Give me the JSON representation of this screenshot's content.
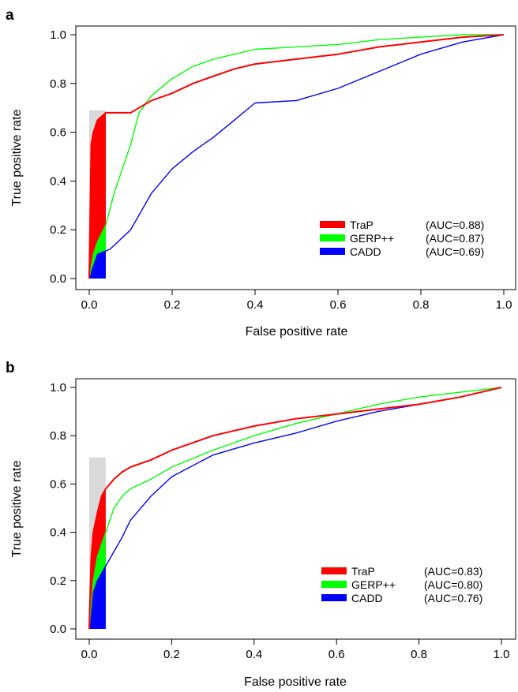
{
  "chart_data": [
    {
      "panel_label": "a",
      "type": "line",
      "subtype": "ROC curve",
      "xlabel": "False positive rate",
      "ylabel": "True positive rate",
      "xlim": [
        0,
        1
      ],
      "ylim": [
        0,
        1
      ],
      "xticks": [
        "0.0",
        "0.2",
        "0.4",
        "0.6",
        "0.8",
        "1.0"
      ],
      "yticks": [
        "0.0",
        "0.2",
        "0.4",
        "0.6",
        "0.8",
        "1.0"
      ],
      "grid": false,
      "legend_position": "bottom-right",
      "highlight_region": {
        "x": [
          0,
          0.04
        ],
        "y": [
          0,
          0.69
        ],
        "color": "#d9d9d9"
      },
      "series": [
        {
          "name": "TraP",
          "auc_label": "(AUC=0.88)",
          "color": "#ff0000",
          "x": [
            0,
            0.005,
            0.01,
            0.02,
            0.04,
            0.1,
            0.12,
            0.15,
            0.2,
            0.25,
            0.3,
            0.35,
            0.4,
            0.5,
            0.6,
            0.7,
            0.8,
            0.9,
            1.0
          ],
          "y": [
            0,
            0.55,
            0.6,
            0.65,
            0.68,
            0.68,
            0.7,
            0.73,
            0.76,
            0.8,
            0.83,
            0.86,
            0.88,
            0.9,
            0.92,
            0.95,
            0.97,
            0.99,
            1.0
          ]
        },
        {
          "name": "GERP++",
          "auc_label": "(AUC=0.87)",
          "color": "#00ff00",
          "x": [
            0,
            0.01,
            0.02,
            0.04,
            0.06,
            0.08,
            0.1,
            0.12,
            0.15,
            0.2,
            0.25,
            0.3,
            0.35,
            0.4,
            0.5,
            0.6,
            0.7,
            0.8,
            0.9,
            1.0
          ],
          "y": [
            0,
            0.1,
            0.15,
            0.22,
            0.35,
            0.45,
            0.55,
            0.68,
            0.75,
            0.82,
            0.87,
            0.9,
            0.92,
            0.94,
            0.95,
            0.96,
            0.98,
            0.99,
            1.0,
            1.0
          ]
        },
        {
          "name": "CADD",
          "auc_label": "(AUC=0.69)",
          "color": "#0000ff",
          "x": [
            0,
            0.02,
            0.05,
            0.1,
            0.15,
            0.2,
            0.25,
            0.3,
            0.35,
            0.4,
            0.5,
            0.6,
            0.7,
            0.8,
            0.9,
            1.0
          ],
          "y": [
            0,
            0.1,
            0.12,
            0.2,
            0.35,
            0.45,
            0.52,
            0.58,
            0.65,
            0.72,
            0.73,
            0.78,
            0.85,
            0.92,
            0.97,
            1.0
          ]
        }
      ]
    },
    {
      "panel_label": "b",
      "type": "line",
      "subtype": "ROC curve",
      "xlabel": "False positive rate",
      "ylabel": "True positive rate",
      "xlim": [
        0,
        1
      ],
      "ylim": [
        0,
        1
      ],
      "xticks": [
        "0.0",
        "0.2",
        "0.4",
        "0.6",
        "0.8",
        "1.0"
      ],
      "yticks": [
        "0.0",
        "0.2",
        "0.4",
        "0.6",
        "0.8",
        "1.0"
      ],
      "grid": false,
      "legend_position": "bottom-right",
      "highlight_region": {
        "x": [
          0,
          0.04
        ],
        "y": [
          0,
          0.71
        ],
        "color": "#d9d9d9"
      },
      "series": [
        {
          "name": "TraP",
          "auc_label": "(AUC=0.83)",
          "color": "#ff0000",
          "x": [
            0,
            0.005,
            0.01,
            0.02,
            0.03,
            0.04,
            0.06,
            0.08,
            0.1,
            0.15,
            0.2,
            0.3,
            0.4,
            0.5,
            0.6,
            0.7,
            0.8,
            0.9,
            1.0
          ],
          "y": [
            0,
            0.3,
            0.4,
            0.48,
            0.55,
            0.58,
            0.62,
            0.65,
            0.67,
            0.7,
            0.74,
            0.8,
            0.84,
            0.87,
            0.89,
            0.91,
            0.93,
            0.96,
            1.0
          ]
        },
        {
          "name": "GERP++",
          "auc_label": "(AUC=0.80)",
          "color": "#00ff00",
          "x": [
            0,
            0.01,
            0.02,
            0.04,
            0.06,
            0.08,
            0.1,
            0.15,
            0.2,
            0.3,
            0.4,
            0.5,
            0.6,
            0.7,
            0.8,
            0.9,
            1.0
          ],
          "y": [
            0,
            0.2,
            0.3,
            0.4,
            0.5,
            0.55,
            0.58,
            0.62,
            0.67,
            0.74,
            0.8,
            0.85,
            0.89,
            0.93,
            0.96,
            0.98,
            1.0
          ]
        },
        {
          "name": "CADD",
          "auc_label": "(AUC=0.76)",
          "color": "#0000ff",
          "x": [
            0,
            0.01,
            0.02,
            0.04,
            0.06,
            0.08,
            0.1,
            0.15,
            0.2,
            0.3,
            0.4,
            0.5,
            0.6,
            0.7,
            0.8,
            0.9,
            1.0
          ],
          "y": [
            0,
            0.15,
            0.2,
            0.26,
            0.32,
            0.38,
            0.45,
            0.55,
            0.63,
            0.72,
            0.77,
            0.81,
            0.86,
            0.9,
            0.93,
            0.96,
            1.0
          ]
        }
      ]
    }
  ]
}
